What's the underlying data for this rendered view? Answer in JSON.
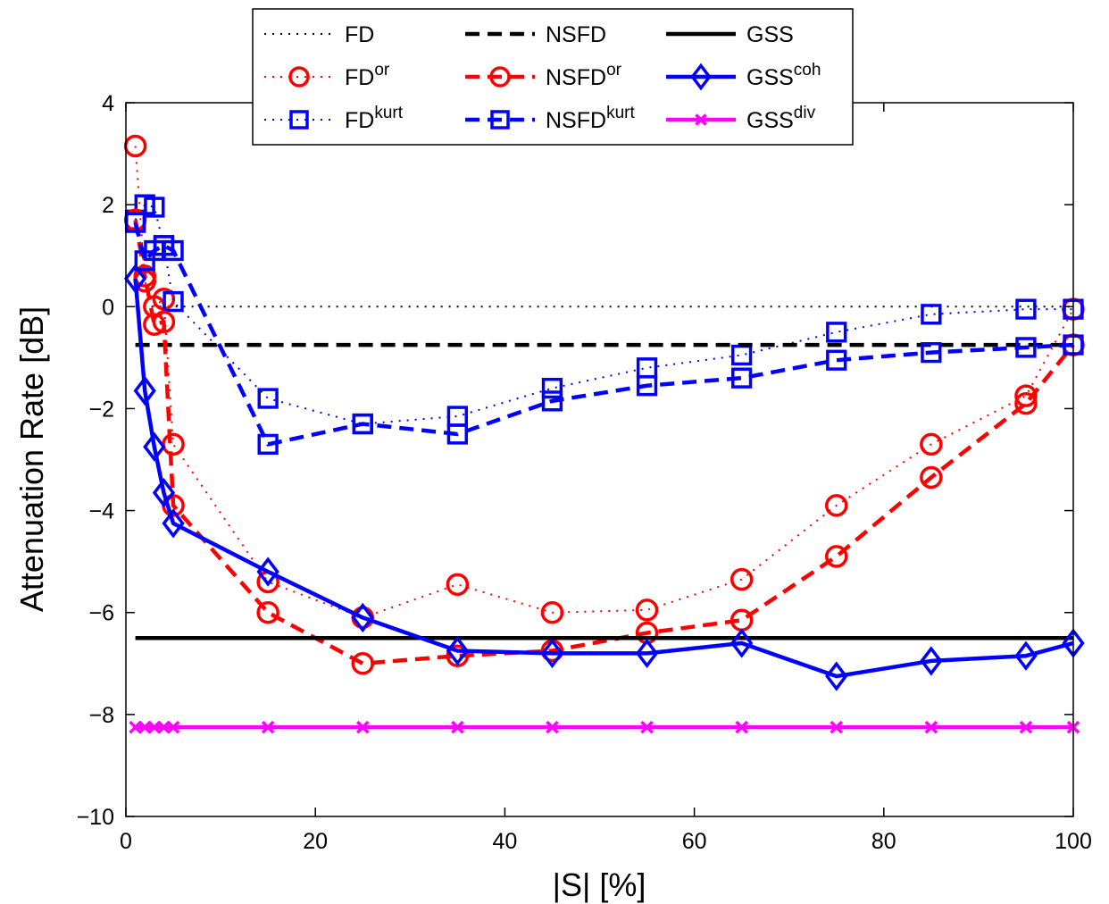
{
  "chart_data": {
    "type": "line",
    "title": "",
    "xlabel": "|S| [%]",
    "ylabel": "Attenuation Rate [dB]",
    "xlim": [
      0,
      100
    ],
    "ylim": [
      -10,
      4
    ],
    "xticks": [
      0,
      20,
      40,
      60,
      80,
      100
    ],
    "yticks": [
      -10,
      -8,
      -6,
      -4,
      -2,
      0,
      2,
      4
    ],
    "xtick_labels": [
      "0",
      "20",
      "40",
      "60",
      "80",
      "100"
    ],
    "ytick_labels": [
      "−10",
      "−8",
      "−6",
      "−4",
      "−2",
      "0",
      "2",
      "4"
    ],
    "grid": false,
    "legend_position": "top",
    "series": [
      {
        "name": "FD",
        "name_base": "FD",
        "name_sup": "",
        "color": "#000000",
        "line": "dotted",
        "marker": "none",
        "x": [
          1,
          100
        ],
        "y": [
          0,
          0
        ]
      },
      {
        "name": "FDor",
        "name_base": "FD",
        "name_sup": "or",
        "color": "#ff0000",
        "line": "dotted",
        "marker": "circle",
        "x": [
          1,
          2,
          3,
          4,
          5,
          15,
          25,
          35,
          45,
          55,
          65,
          75,
          85,
          95,
          100
        ],
        "y": [
          3.15,
          0.5,
          0.0,
          0.15,
          -2.7,
          -5.4,
          -6.1,
          -5.45,
          -6.0,
          -5.95,
          -5.35,
          -3.9,
          -2.7,
          -1.75,
          -0.05
        ]
      },
      {
        "name": "FDkurt",
        "name_base": "FD",
        "name_sup": "kurt",
        "color": "#0000ff",
        "line": "dotted",
        "marker": "square",
        "x": [
          1,
          2,
          3,
          4,
          5,
          15,
          25,
          35,
          45,
          55,
          65,
          75,
          85,
          95,
          100
        ],
        "y": [
          1.7,
          2.0,
          1.95,
          1.2,
          0.1,
          -1.8,
          -2.3,
          -2.15,
          -1.6,
          -1.2,
          -0.95,
          -0.5,
          -0.15,
          -0.05,
          -0.05
        ]
      },
      {
        "name": "NSFD",
        "name_base": "NSFD",
        "name_sup": "",
        "color": "#000000",
        "line": "dashed",
        "marker": "none",
        "x": [
          1,
          100
        ],
        "y": [
          -0.75,
          -0.75
        ]
      },
      {
        "name": "NSFDor",
        "name_base": "NSFD",
        "name_sup": "or",
        "color": "#ff0000",
        "line": "dashed",
        "marker": "circle",
        "x": [
          1,
          2,
          3,
          4,
          5,
          15,
          25,
          35,
          45,
          55,
          65,
          75,
          85,
          95,
          100
        ],
        "y": [
          1.7,
          0.6,
          -0.35,
          -0.3,
          -3.9,
          -6.0,
          -7.0,
          -6.85,
          -6.75,
          -6.4,
          -6.15,
          -4.9,
          -3.35,
          -1.9,
          -0.75
        ]
      },
      {
        "name": "NSFDkurt",
        "name_base": "NSFD",
        "name_sup": "kurt",
        "color": "#0000ff",
        "line": "dashed",
        "marker": "square",
        "x": [
          1,
          2,
          3,
          4,
          5,
          15,
          25,
          35,
          45,
          55,
          65,
          75,
          85,
          95,
          100
        ],
        "y": [
          1.65,
          0.9,
          1.1,
          1.2,
          1.1,
          -2.7,
          -2.3,
          -2.5,
          -1.85,
          -1.55,
          -1.4,
          -1.05,
          -0.9,
          -0.8,
          -0.75
        ]
      },
      {
        "name": "GSS",
        "name_base": "GSS",
        "name_sup": "",
        "color": "#000000",
        "line": "solid",
        "marker": "none",
        "x": [
          1,
          100
        ],
        "y": [
          -6.5,
          -6.5
        ]
      },
      {
        "name": "GSScoh",
        "name_base": "GSS",
        "name_sup": "coh",
        "color": "#0000ff",
        "line": "solid",
        "marker": "diamond",
        "x": [
          1,
          2,
          3,
          4,
          5,
          15,
          25,
          35,
          45,
          55,
          65,
          75,
          85,
          95,
          100
        ],
        "y": [
          0.55,
          -1.65,
          -2.75,
          -3.65,
          -4.25,
          -5.2,
          -6.1,
          -6.75,
          -6.8,
          -6.8,
          -6.6,
          -7.25,
          -6.95,
          -6.85,
          -6.6
        ]
      },
      {
        "name": "GSSdiv",
        "name_base": "GSS",
        "name_sup": "div",
        "color": "#ff00ff",
        "line": "solid",
        "marker": "x",
        "x": [
          1,
          2,
          3,
          4,
          5,
          15,
          25,
          35,
          45,
          55,
          65,
          75,
          85,
          95,
          100
        ],
        "y": [
          -8.25,
          -8.25,
          -8.25,
          -8.25,
          -8.25,
          -8.25,
          -8.25,
          -8.25,
          -8.25,
          -8.25,
          -8.25,
          -8.25,
          -8.25,
          -8.25,
          -8.25
        ]
      }
    ]
  }
}
